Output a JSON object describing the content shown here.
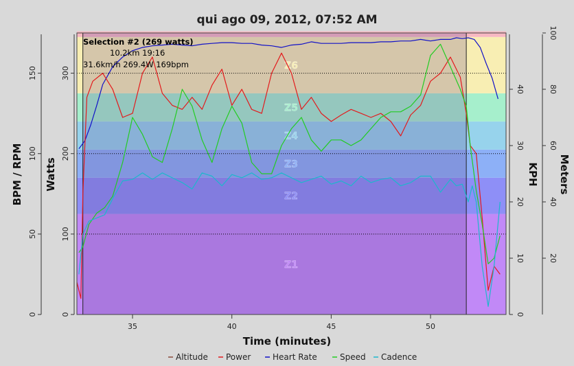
{
  "chart_data": {
    "type": "line",
    "title": "qui ago 09, 2012, 07:52 AM",
    "xlabel": "Time (minutes)",
    "xlim": [
      32.2,
      53.8
    ],
    "x_ticks": [
      35,
      40,
      45,
      50
    ],
    "axes": {
      "bpm_rpm": {
        "label": "BPM / RPM",
        "ticks": [
          0,
          50,
          100,
          150
        ],
        "range": [
          0,
          175
        ]
      },
      "watts": {
        "label": "Watts",
        "ticks": [
          0,
          100,
          200,
          300
        ],
        "range": [
          0,
          350
        ]
      },
      "kph": {
        "label": "KPH",
        "ticks": [
          0,
          10,
          20,
          30,
          40
        ],
        "range": [
          0,
          50
        ]
      },
      "meters": {
        "label": "Meters",
        "ticks": [
          20,
          40,
          60,
          80,
          100
        ],
        "range": [
          0,
          100
        ]
      }
    },
    "power_zones": [
      {
        "name": "Z1",
        "from": 0,
        "to": 125,
        "color": "#c189f7"
      },
      {
        "name": "Z2",
        "from": 125,
        "to": 170,
        "color": "#8e8ff7"
      },
      {
        "name": "Z3",
        "from": 170,
        "to": 205,
        "color": "#8db0f7"
      },
      {
        "name": "Z4",
        "from": 205,
        "to": 240,
        "color": "#97d3ec"
      },
      {
        "name": "Z5",
        "from": 240,
        "to": 275,
        "color": "#a6efcc"
      },
      {
        "name": "Z6",
        "from": 275,
        "to": 345,
        "color": "#f8eeb3"
      },
      {
        "name": "Z7",
        "from": 345,
        "to": 352,
        "color": "#f7b8c2"
      }
    ],
    "interval": {
      "name": "Selection #2 (269 watts)",
      "line1": "10.2km 19:16",
      "line2": "31.6km/h 269.4W 169bpm",
      "start": 32.5,
      "end": 51.8
    },
    "legend": [
      {
        "name": "Altitude",
        "color": "#8b4a3a"
      },
      {
        "name": "Power",
        "color": "#e31a1c"
      },
      {
        "name": "Heart Rate",
        "color": "#1010c8"
      },
      {
        "name": "Speed",
        "color": "#22cc22"
      },
      {
        "name": "Cadence",
        "color": "#1cb8cc"
      }
    ],
    "series": [
      {
        "name": "Heart Rate",
        "axis": "bpm_rpm",
        "color": "#1010c8",
        "x": [
          32.3,
          32.6,
          32.9,
          33.2,
          33.5,
          34.0,
          34.5,
          35.0,
          35.5,
          36.0,
          36.5,
          37.0,
          37.5,
          38.0,
          38.5,
          39.0,
          39.5,
          40.0,
          40.5,
          41.0,
          41.5,
          42.0,
          42.5,
          43.0,
          43.5,
          44.0,
          44.5,
          45.0,
          45.5,
          46.0,
          46.5,
          47.0,
          47.5,
          48.0,
          48.5,
          49.0,
          49.5,
          50.0,
          50.5,
          51.0,
          51.3,
          51.6,
          51.9,
          52.2,
          52.5,
          52.8,
          53.1,
          53.4
        ],
        "y": [
          103,
          108,
          118,
          130,
          143,
          154,
          160,
          164,
          166,
          167,
          167.5,
          168,
          167.5,
          167,
          168,
          168.5,
          169,
          169,
          168.5,
          168.5,
          167.5,
          167,
          166,
          167.5,
          168,
          169.5,
          168.5,
          168.5,
          168.5,
          169,
          169,
          169,
          169.5,
          169.5,
          170,
          170,
          171,
          170,
          171,
          171,
          172,
          171.5,
          172,
          171,
          166,
          156,
          147,
          134
        ]
      },
      {
        "name": "Power",
        "axis": "watts",
        "color": "#e31a1c",
        "x": [
          32.2,
          32.4,
          32.5,
          32.7,
          33.0,
          33.5,
          34.0,
          34.5,
          35.0,
          35.5,
          36.0,
          36.5,
          37.0,
          37.5,
          38.0,
          38.5,
          39.0,
          39.5,
          40.0,
          40.5,
          41.0,
          41.5,
          42.0,
          42.5,
          43.0,
          43.5,
          44.0,
          44.5,
          45.0,
          45.5,
          46.0,
          46.5,
          47.0,
          47.5,
          48.0,
          48.5,
          49.0,
          49.5,
          50.0,
          50.5,
          51.0,
          51.5,
          51.8,
          52.0,
          52.3,
          52.6,
          52.9,
          53.2,
          53.5
        ],
        "y": [
          40,
          20,
          150,
          270,
          290,
          300,
          280,
          245,
          250,
          300,
          320,
          275,
          260,
          255,
          270,
          255,
          285,
          305,
          260,
          280,
          255,
          250,
          300,
          325,
          300,
          255,
          270,
          250,
          240,
          248,
          255,
          250,
          245,
          250,
          240,
          222,
          248,
          260,
          290,
          300,
          320,
          295,
          250,
          210,
          200,
          120,
          30,
          60,
          50
        ]
      },
      {
        "name": "Speed",
        "axis": "kph",
        "color": "#22cc22",
        "x": [
          32.3,
          32.5,
          32.8,
          33.2,
          33.6,
          34.0,
          34.5,
          35.0,
          35.5,
          36.0,
          36.5,
          37.0,
          37.5,
          38.0,
          38.5,
          39.0,
          39.5,
          40.0,
          40.5,
          41.0,
          41.5,
          42.0,
          42.5,
          43.0,
          43.5,
          44.0,
          44.5,
          45.0,
          45.5,
          46.0,
          46.5,
          47.0,
          47.5,
          48.0,
          48.5,
          49.0,
          49.5,
          50.0,
          50.5,
          51.0,
          51.5,
          51.8,
          52.0,
          52.3,
          52.6,
          52.9,
          53.2,
          53.5
        ],
        "y": [
          11,
          12,
          16,
          18,
          19,
          21,
          27,
          35,
          32,
          28,
          27,
          33,
          40,
          37,
          31,
          27,
          33,
          37,
          34,
          27,
          25,
          25,
          30,
          33,
          35,
          31,
          29,
          31,
          31,
          30,
          31,
          33,
          35,
          36,
          36,
          37,
          39,
          46,
          48,
          44,
          40,
          37,
          30,
          22,
          16,
          9,
          10,
          14
        ]
      },
      {
        "name": "Cadence",
        "axis": "bpm_rpm",
        "color": "#1cb8cc",
        "x": [
          32.3,
          32.5,
          32.8,
          33.2,
          33.6,
          34.0,
          34.5,
          35.0,
          35.5,
          36.0,
          36.5,
          37.0,
          37.5,
          38.0,
          38.5,
          39.0,
          39.5,
          40.0,
          40.5,
          41.0,
          41.5,
          42.0,
          42.5,
          43.0,
          43.5,
          44.0,
          44.5,
          45.0,
          45.5,
          46.0,
          46.5,
          47.0,
          47.5,
          48.0,
          48.5,
          49.0,
          49.5,
          50.0,
          50.5,
          51.0,
          51.3,
          51.6,
          51.9,
          52.1,
          52.3,
          52.6,
          52.9,
          53.2,
          53.5
        ],
        "y": [
          25,
          50,
          58,
          60,
          62,
          72,
          83,
          84,
          88,
          84,
          88,
          85,
          82,
          78,
          88,
          86,
          80,
          87,
          85,
          88,
          84,
          85,
          88,
          85,
          82,
          84,
          86,
          81,
          83,
          80,
          86,
          82,
          84,
          85,
          80,
          82,
          86,
          86,
          76,
          84,
          80,
          81,
          70,
          80,
          70,
          30,
          5,
          30,
          70
        ]
      },
      {
        "name": "Altitude",
        "axis": "meters",
        "color": "#8b4a3a",
        "x": [],
        "y": []
      }
    ]
  }
}
